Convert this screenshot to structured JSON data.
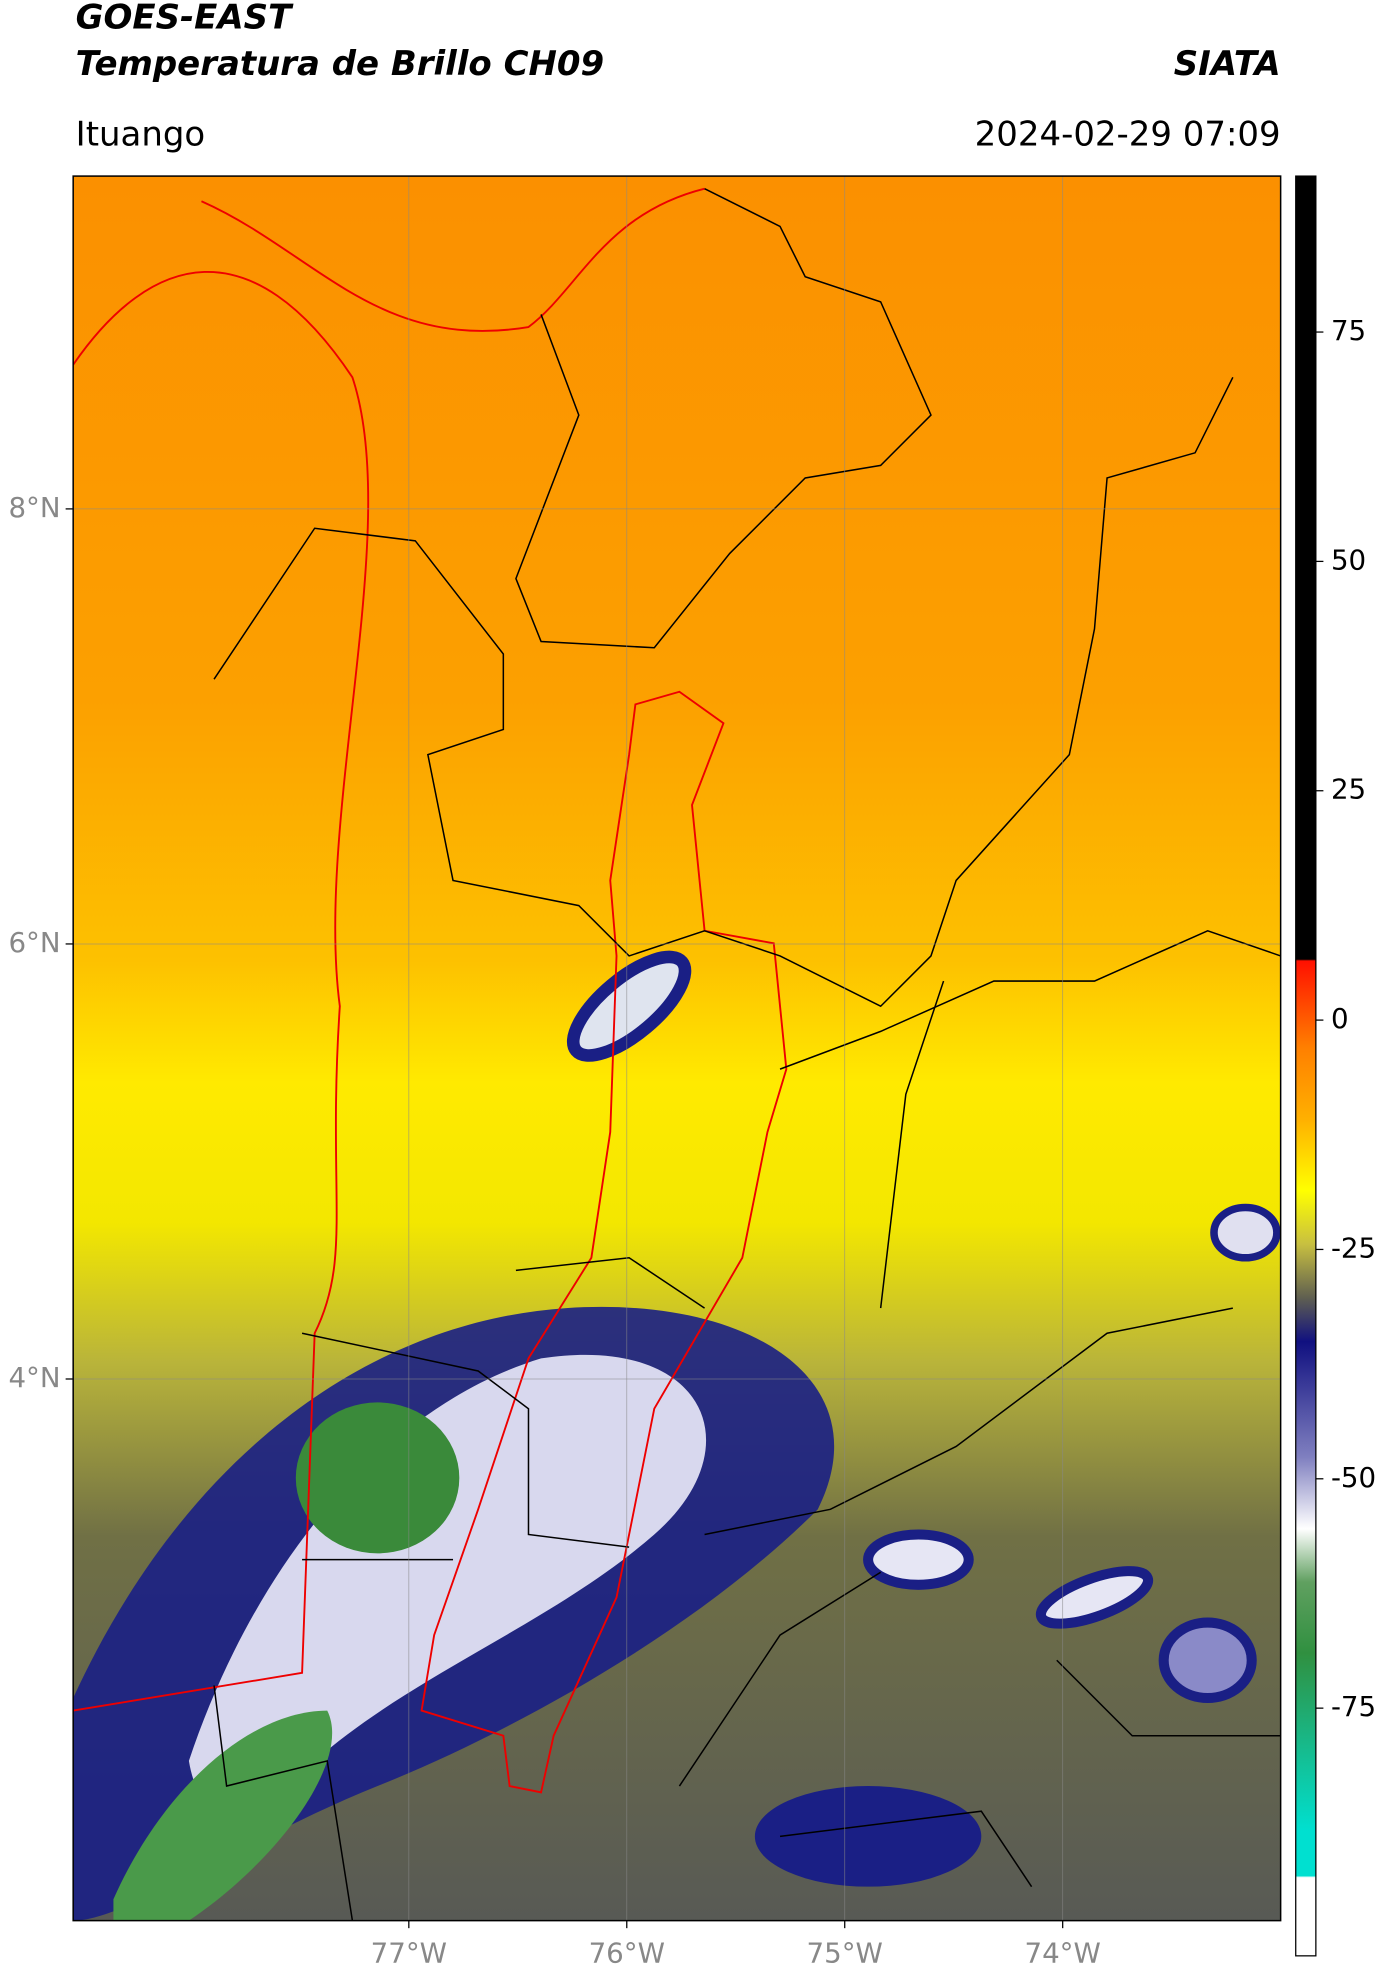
{
  "header": {
    "title": "GOES-EAST",
    "subtitle": "Temperatura de Brillo CH09",
    "agency": "SIATA",
    "location": "Ituango",
    "timestamp": "2024-02-29 07:09"
  },
  "map": {
    "xlim": [
      -78.54,
      -73.0
    ],
    "ylim": [
      1.51,
      9.53
    ],
    "xticks": [
      {
        "value": -77,
        "label": "77°W"
      },
      {
        "value": -76,
        "label": "76°W"
      },
      {
        "value": -75,
        "label": "75°W"
      },
      {
        "value": -74,
        "label": "74°W"
      }
    ],
    "yticks": [
      {
        "value": 8,
        "label": "8°N"
      },
      {
        "value": 6,
        "label": "6°N"
      },
      {
        "value": 4,
        "label": "4°N"
      }
    ],
    "grid": true
  },
  "colorbar": {
    "lim": [
      -102,
      92
    ],
    "ticks": [
      -75,
      -50,
      -25,
      0,
      25,
      50,
      75
    ]
  }
}
